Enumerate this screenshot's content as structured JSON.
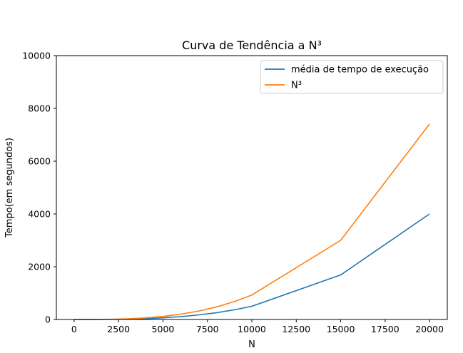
{
  "chart_data": {
    "type": "line",
    "title": "Curva de Tendência a N³",
    "xlabel": "N",
    "ylabel": "Tempo(em segundos)",
    "xlim": [
      -1000,
      21000
    ],
    "ylim": [
      0,
      10000
    ],
    "xticks": [
      0,
      2500,
      5000,
      7500,
      10000,
      12500,
      15000,
      17500,
      20000
    ],
    "yticks": [
      0,
      2000,
      4000,
      6000,
      8000,
      10000
    ],
    "grid": false,
    "legend_position": "top-right",
    "x": [
      0,
      1000,
      2000,
      3000,
      4000,
      5000,
      6000,
      7000,
      8000,
      9000,
      10000,
      15000,
      20000
    ],
    "series": [
      {
        "name": "média de tempo de execução",
        "color": "#1f77b4",
        "values": [
          0,
          0.5,
          4,
          13,
          32,
          62,
          108,
          172,
          256,
          365,
          500,
          1688,
          4000
        ]
      },
      {
        "name": "N³",
        "color": "#ff7f0e",
        "values": [
          0,
          0.9,
          7,
          25,
          59,
          116,
          200,
          318,
          474,
          675,
          926,
          3000,
          7410
        ]
      }
    ]
  }
}
